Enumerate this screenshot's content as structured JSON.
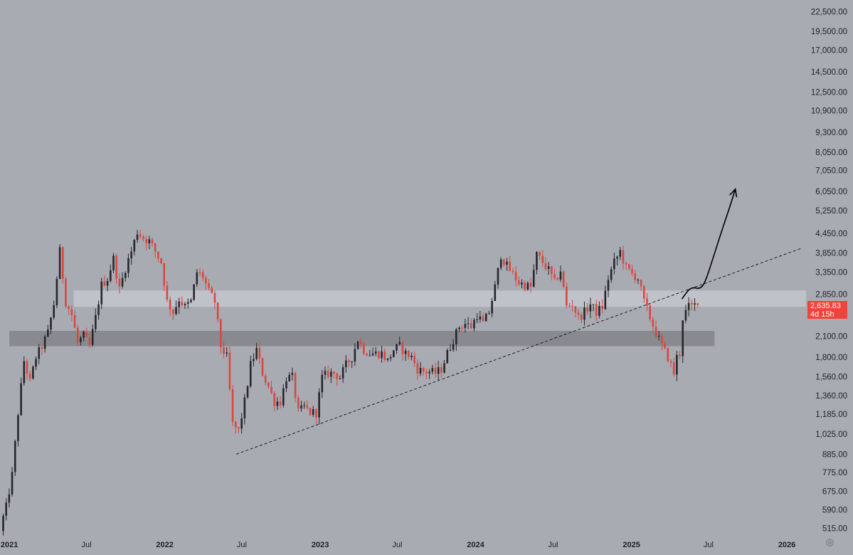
{
  "chart_data": {
    "type": "candlestick",
    "title": "",
    "xlabel": "",
    "ylabel": "",
    "y_scale": "log",
    "ylim": [
      490,
      24500
    ],
    "xlim": [
      "2020-12-10",
      "2026-02-15"
    ],
    "grid": false,
    "y_ticks": [
      22500,
      19500,
      17000,
      14500,
      12500,
      10900,
      9300,
      8050,
      7050,
      6050,
      5250,
      4450,
      3850,
      3350,
      2850,
      2100,
      1800,
      1560,
      1360,
      1185,
      1025,
      885,
      775,
      675,
      590,
      515
    ],
    "y_tick_labels": [
      "22,500.00",
      "19,500.00",
      "17,000.00",
      "14,500.00",
      "12,500.00",
      "10,900.00",
      "9,300.00",
      "8,050.00",
      "7,050.00",
      "6,050.00",
      "5,250.00",
      "4,450.00",
      "3,850.00",
      "3,350.00",
      "2,850.00",
      "2,100.00",
      "1,800.00",
      "1,560.00",
      "1,360.00",
      "1,185.00",
      "1,025.00",
      "885.00",
      "775.00",
      "675.00",
      "590.00",
      "515.00"
    ],
    "x_ticks": [
      {
        "date": "2021-01-01",
        "label": "2021",
        "bold": true
      },
      {
        "date": "2021-07-01",
        "label": "Jul",
        "bold": false
      },
      {
        "date": "2022-01-01",
        "label": "2022",
        "bold": true
      },
      {
        "date": "2022-07-01",
        "label": "Jul",
        "bold": false
      },
      {
        "date": "2023-01-01",
        "label": "2023",
        "bold": true
      },
      {
        "date": "2023-07-01",
        "label": "Jul",
        "bold": false
      },
      {
        "date": "2024-01-01",
        "label": "2024",
        "bold": true
      },
      {
        "date": "2024-07-01",
        "label": "Jul",
        "bold": false
      },
      {
        "date": "2025-01-01",
        "label": "2025",
        "bold": true
      },
      {
        "date": "2025-07-01",
        "label": "Jul",
        "bold": false
      },
      {
        "date": "2026-01-01",
        "label": "2026",
        "bold": true
      }
    ],
    "colors": {
      "background": "#a9abb3",
      "up_candle": "#26272d",
      "down_candle": "#d8473f",
      "upper_zone": "#c3c5cc",
      "lower_zone": "#84868c",
      "annotation": "#000000",
      "badge": "#f2433a"
    },
    "zones": [
      {
        "name": "upper",
        "y_low": 2600,
        "y_high": 2930,
        "x_start": "2021-06-01",
        "x_end": "2026-02-15"
      },
      {
        "name": "lower",
        "y_low": 1950,
        "y_high": 2180,
        "x_start": "2021-01-01",
        "x_end": "2025-07-15"
      }
    ],
    "trendline": {
      "style": "dashed",
      "from": {
        "date": "2022-06-18",
        "value": 885
      },
      "to": {
        "date": "2026-02-15",
        "value": 4000
      }
    },
    "projection_arrow": {
      "points": [
        {
          "date": "2025-04-30",
          "value": 2760
        },
        {
          "date": "2025-05-20",
          "value": 3010
        },
        {
          "date": "2025-06-10",
          "value": 2960
        },
        {
          "date": "2025-06-22",
          "value": 3080
        },
        {
          "date": "2025-07-10",
          "value": 3650
        },
        {
          "date": "2025-07-30",
          "value": 4450
        },
        {
          "date": "2025-08-20",
          "value": 5400
        },
        {
          "date": "2025-09-02",
          "value": 6150
        }
      ]
    },
    "last_price": {
      "value": 2635.83,
      "label": "2,635.83",
      "countdown": "4d 15h"
    },
    "weeks_start": "2020-12-14",
    "anchors": [
      [
        "2020-12-14",
        520
      ],
      [
        "2020-12-28",
        600
      ],
      [
        "2021-01-11",
        760
      ],
      [
        "2021-01-25",
        1200
      ],
      [
        "2021-02-08",
        1750
      ],
      [
        "2021-02-22",
        1500
      ],
      [
        "2021-03-08",
        1800
      ],
      [
        "2021-03-22",
        1950
      ],
      [
        "2021-04-05",
        2150
      ],
      [
        "2021-04-19",
        2650
      ],
      [
        "2021-05-03",
        3900
      ],
      [
        "2021-05-17",
        2700
      ],
      [
        "2021-05-31",
        2450
      ],
      [
        "2021-06-14",
        2000
      ],
      [
        "2021-06-28",
        2100
      ],
      [
        "2021-07-12",
        1950
      ],
      [
        "2021-07-26",
        2400
      ],
      [
        "2021-08-09",
        3050
      ],
      [
        "2021-08-23",
        3200
      ],
      [
        "2021-09-06",
        3700
      ],
      [
        "2021-09-20",
        2950
      ],
      [
        "2021-10-04",
        3450
      ],
      [
        "2021-10-18",
        3900
      ],
      [
        "2021-11-01",
        4500
      ],
      [
        "2021-11-15",
        4300
      ],
      [
        "2021-11-29",
        4200
      ],
      [
        "2021-12-13",
        3900
      ],
      [
        "2021-12-27",
        3600
      ],
      [
        "2022-01-10",
        2700
      ],
      [
        "2022-01-24",
        2500
      ],
      [
        "2022-02-07",
        2750
      ],
      [
        "2022-02-21",
        2600
      ],
      [
        "2022-03-07",
        2700
      ],
      [
        "2022-03-21",
        3350
      ],
      [
        "2022-04-04",
        3250
      ],
      [
        "2022-04-18",
        2900
      ],
      [
        "2022-05-02",
        2700
      ],
      [
        "2022-05-16",
        1950
      ],
      [
        "2022-05-30",
        1800
      ],
      [
        "2022-06-13",
        1100
      ],
      [
        "2022-06-27",
        1050
      ],
      [
        "2022-07-11",
        1300
      ],
      [
        "2022-07-25",
        1700
      ],
      [
        "2022-08-08",
        1900
      ],
      [
        "2022-08-22",
        1600
      ],
      [
        "2022-09-05",
        1450
      ],
      [
        "2022-09-19",
        1300
      ],
      [
        "2022-10-03",
        1300
      ],
      [
        "2022-10-17",
        1550
      ],
      [
        "2022-10-31",
        1550
      ],
      [
        "2022-11-14",
        1200
      ],
      [
        "2022-11-28",
        1250
      ],
      [
        "2022-12-12",
        1200
      ],
      [
        "2022-12-26",
        1200
      ],
      [
        "2023-01-09",
        1550
      ],
      [
        "2023-01-23",
        1600
      ],
      [
        "2023-02-06",
        1600
      ],
      [
        "2023-02-20",
        1550
      ],
      [
        "2023-03-06",
        1700
      ],
      [
        "2023-03-20",
        1800
      ],
      [
        "2023-04-03",
        2050
      ],
      [
        "2023-04-17",
        1900
      ],
      [
        "2023-05-01",
        1850
      ],
      [
        "2023-05-15",
        1850
      ],
      [
        "2023-05-29",
        1850
      ],
      [
        "2023-06-12",
        1750
      ],
      [
        "2023-06-26",
        1900
      ],
      [
        "2023-07-10",
        1950
      ],
      [
        "2023-07-24",
        1850
      ],
      [
        "2023-08-07",
        1800
      ],
      [
        "2023-08-21",
        1650
      ],
      [
        "2023-09-04",
        1620
      ],
      [
        "2023-09-18",
        1620
      ],
      [
        "2023-10-02",
        1600
      ],
      [
        "2023-10-16",
        1650
      ],
      [
        "2023-10-30",
        1850
      ],
      [
        "2023-11-13",
        2050
      ],
      [
        "2023-11-27",
        2250
      ],
      [
        "2023-12-11",
        2300
      ],
      [
        "2023-12-25",
        2250
      ],
      [
        "2024-01-08",
        2450
      ],
      [
        "2024-01-22",
        2300
      ],
      [
        "2024-02-05",
        2500
      ],
      [
        "2024-02-19",
        3000
      ],
      [
        "2024-03-04",
        3800
      ],
      [
        "2024-03-18",
        3500
      ],
      [
        "2024-04-01",
        3300
      ],
      [
        "2024-04-15",
        3100
      ],
      [
        "2024-04-29",
        3050
      ],
      [
        "2024-05-13",
        3000
      ],
      [
        "2024-05-27",
        3800
      ],
      [
        "2024-06-10",
        3600
      ],
      [
        "2024-06-24",
        3400
      ],
      [
        "2024-07-08",
        3100
      ],
      [
        "2024-07-22",
        3400
      ],
      [
        "2024-08-05",
        2600
      ],
      [
        "2024-08-19",
        2650
      ],
      [
        "2024-09-02",
        2400
      ],
      [
        "2024-09-16",
        2500
      ],
      [
        "2024-09-30",
        2650
      ],
      [
        "2024-10-14",
        2500
      ],
      [
        "2024-10-28",
        2600
      ],
      [
        "2024-11-11",
        3200
      ],
      [
        "2024-11-25",
        3600
      ],
      [
        "2024-12-09",
        3900
      ],
      [
        "2024-12-23",
        3450
      ],
      [
        "2025-01-06",
        3300
      ],
      [
        "2025-01-20",
        3200
      ],
      [
        "2025-02-03",
        2700
      ],
      [
        "2025-02-17",
        2400
      ],
      [
        "2025-03-03",
        2150
      ],
      [
        "2025-03-17",
        1950
      ],
      [
        "2025-03-31",
        1800
      ],
      [
        "2025-04-14",
        1600
      ],
      [
        "2025-04-21",
        1800
      ],
      [
        "2025-04-28",
        1850
      ],
      [
        "2025-05-05",
        2400
      ],
      [
        "2025-05-12",
        2500
      ],
      [
        "2025-05-19",
        2600
      ],
      [
        "2025-05-26",
        2600
      ],
      [
        "2025-06-02",
        2635.83
      ]
    ]
  }
}
